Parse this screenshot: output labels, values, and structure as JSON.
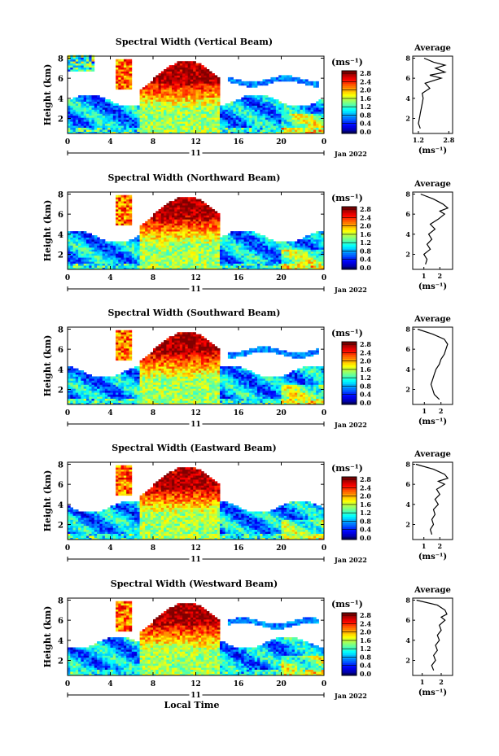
{
  "figure": {
    "bottom_xlabel": "Local Time",
    "date_label": "Jan 2022",
    "day_label": "11",
    "unit_label": "(ms⁻¹)",
    "avg_title": "Average",
    "ylabel": "Height (km)"
  },
  "chart_data": [
    {
      "type": "heatmap",
      "title": "Spectral Width (Vertical Beam)",
      "xlabel": "",
      "ylabel": "Height (km)",
      "x_ticks": [
        "0",
        "4",
        "8",
        "12",
        "16",
        "20",
        "0"
      ],
      "xlim": [
        0,
        24
      ],
      "y_ticks": [
        "2",
        "4",
        "6",
        "8"
      ],
      "ylim": [
        0.5,
        8.2
      ],
      "colorbar": {
        "label": "(ms⁻¹)",
        "ticks": [
          "0.0",
          "0.4",
          "0.8",
          "1.2",
          "1.6",
          "2.0",
          "2.4",
          "2.8"
        ],
        "range": [
          0,
          3.0
        ]
      },
      "avg_profile": {
        "title": "Average",
        "xlabel": "(ms⁻¹)",
        "x_ticks": [
          "1.2",
          "2.8"
        ],
        "xlim": [
          0.9,
          3.0
        ],
        "height": [
          1.0,
          1.5,
          2.0,
          2.5,
          3.0,
          3.5,
          4.0,
          4.5,
          5.0,
          5.5,
          6.0,
          6.3,
          6.6,
          7.0,
          7.3,
          7.6,
          8.0
        ],
        "values": [
          1.3,
          1.2,
          1.25,
          1.3,
          1.35,
          1.4,
          1.45,
          1.4,
          1.8,
          1.55,
          2.4,
          1.8,
          2.6,
          2.1,
          2.6,
          2.0,
          1.5
        ]
      }
    },
    {
      "type": "heatmap",
      "title": "Spectral Width (Northward Beam)",
      "xlabel": "",
      "ylabel": "Height (km)",
      "x_ticks": [
        "0",
        "4",
        "8",
        "12",
        "16",
        "20",
        "0"
      ],
      "xlim": [
        0,
        24
      ],
      "y_ticks": [
        "2",
        "4",
        "6",
        "8"
      ],
      "ylim": [
        0.5,
        8.2
      ],
      "colorbar": {
        "label": "(ms⁻¹)",
        "ticks": [
          "0.0",
          "0.4",
          "0.8",
          "1.2",
          "1.6",
          "2.0",
          "2.4",
          "2.8"
        ],
        "range": [
          0,
          3.0
        ]
      },
      "avg_profile": {
        "title": "Average",
        "xlabel": "(ms⁻¹)",
        "x_ticks": [
          "1",
          "2"
        ],
        "xlim": [
          0.3,
          2.8
        ],
        "height": [
          1.0,
          1.5,
          2.0,
          2.5,
          3.0,
          3.5,
          4.0,
          4.5,
          5.0,
          5.5,
          6.0,
          6.3,
          6.6,
          7.0,
          7.5,
          8.0
        ],
        "values": [
          1.1,
          1.2,
          1.0,
          1.4,
          1.2,
          1.5,
          1.3,
          1.7,
          1.4,
          1.9,
          2.3,
          2.0,
          2.5,
          2.2,
          1.6,
          0.8
        ]
      }
    },
    {
      "type": "heatmap",
      "title": "Spectral Width (Southward Beam)",
      "xlabel": "",
      "ylabel": "Height (km)",
      "x_ticks": [
        "0",
        "4",
        "8",
        "12",
        "16",
        "20",
        "0"
      ],
      "xlim": [
        0,
        24
      ],
      "y_ticks": [
        "2",
        "4",
        "6",
        "8"
      ],
      "ylim": [
        0.5,
        8.2
      ],
      "colorbar": {
        "label": "(ms⁻¹)",
        "ticks": [
          "0.0",
          "0.4",
          "0.8",
          "1.2",
          "1.6",
          "2.0",
          "2.4",
          "2.8"
        ],
        "range": [
          0,
          3.0
        ]
      },
      "avg_profile": {
        "title": "Average",
        "xlabel": "(ms⁻¹)",
        "x_ticks": [
          "1",
          "2"
        ],
        "xlim": [
          0.3,
          2.7
        ],
        "height": [
          1.0,
          1.5,
          2.0,
          2.5,
          3.0,
          3.5,
          4.0,
          4.5,
          5.0,
          5.5,
          6.0,
          6.5,
          7.0,
          7.5,
          8.0
        ],
        "values": [
          1.9,
          1.6,
          1.5,
          1.4,
          1.5,
          1.6,
          1.7,
          1.9,
          2.0,
          2.2,
          2.3,
          2.4,
          2.2,
          1.5,
          0.6
        ]
      }
    },
    {
      "type": "heatmap",
      "title": "Spectral Width (Eastward Beam)",
      "xlabel": "",
      "ylabel": "Height (km)",
      "x_ticks": [
        "0",
        "4",
        "8",
        "12",
        "16",
        "20",
        "0"
      ],
      "xlim": [
        0,
        24
      ],
      "y_ticks": [
        "2",
        "4",
        "6",
        "8"
      ],
      "ylim": [
        0.5,
        8.2
      ],
      "colorbar": {
        "label": "(ms⁻¹)",
        "ticks": [
          "0.0",
          "0.4",
          "0.8",
          "1.2",
          "1.6",
          "2.0",
          "2.4",
          "2.8"
        ],
        "range": [
          0,
          3.0
        ]
      },
      "avg_profile": {
        "title": "Average",
        "xlabel": "(ms⁻¹)",
        "x_ticks": [
          "1",
          "2"
        ],
        "xlim": [
          0.3,
          2.8
        ],
        "height": [
          1.0,
          1.5,
          2.0,
          2.5,
          3.0,
          3.5,
          4.0,
          4.5,
          5.0,
          5.5,
          6.0,
          6.3,
          6.6,
          7.0,
          7.5,
          8.0
        ],
        "values": [
          1.5,
          1.4,
          1.6,
          1.5,
          1.7,
          1.6,
          1.9,
          1.7,
          2.0,
          1.8,
          2.3,
          1.9,
          2.5,
          2.3,
          1.6,
          0.5
        ]
      }
    },
    {
      "type": "heatmap",
      "title": "Spectral Width (Westward Beam)",
      "xlabel": "Local Time",
      "ylabel": "Height (km)",
      "x_ticks": [
        "0",
        "4",
        "8",
        "12",
        "16",
        "20",
        "0"
      ],
      "xlim": [
        0,
        24
      ],
      "y_ticks": [
        "2",
        "4",
        "6",
        "8"
      ],
      "ylim": [
        0.5,
        8.2
      ],
      "colorbar": {
        "label": "(ms⁻¹)",
        "ticks": [
          "0.0",
          "0.4",
          "0.8",
          "1.2",
          "1.6",
          "2.0",
          "2.4",
          "2.8"
        ],
        "range": [
          0,
          3.0
        ]
      },
      "avg_profile": {
        "title": "Average",
        "xlabel": "(ms⁻¹)",
        "x_ticks": [
          "1",
          "2"
        ],
        "xlim": [
          0.5,
          2.6
        ],
        "height": [
          1.0,
          1.5,
          2.0,
          2.5,
          3.0,
          3.5,
          4.0,
          4.5,
          5.0,
          5.5,
          6.0,
          6.3,
          6.6,
          7.0,
          7.5,
          8.0
        ],
        "values": [
          1.6,
          1.5,
          1.7,
          1.6,
          1.8,
          1.7,
          1.9,
          1.8,
          2.0,
          1.9,
          2.2,
          2.0,
          2.3,
          2.2,
          1.8,
          0.7
        ]
      }
    }
  ]
}
